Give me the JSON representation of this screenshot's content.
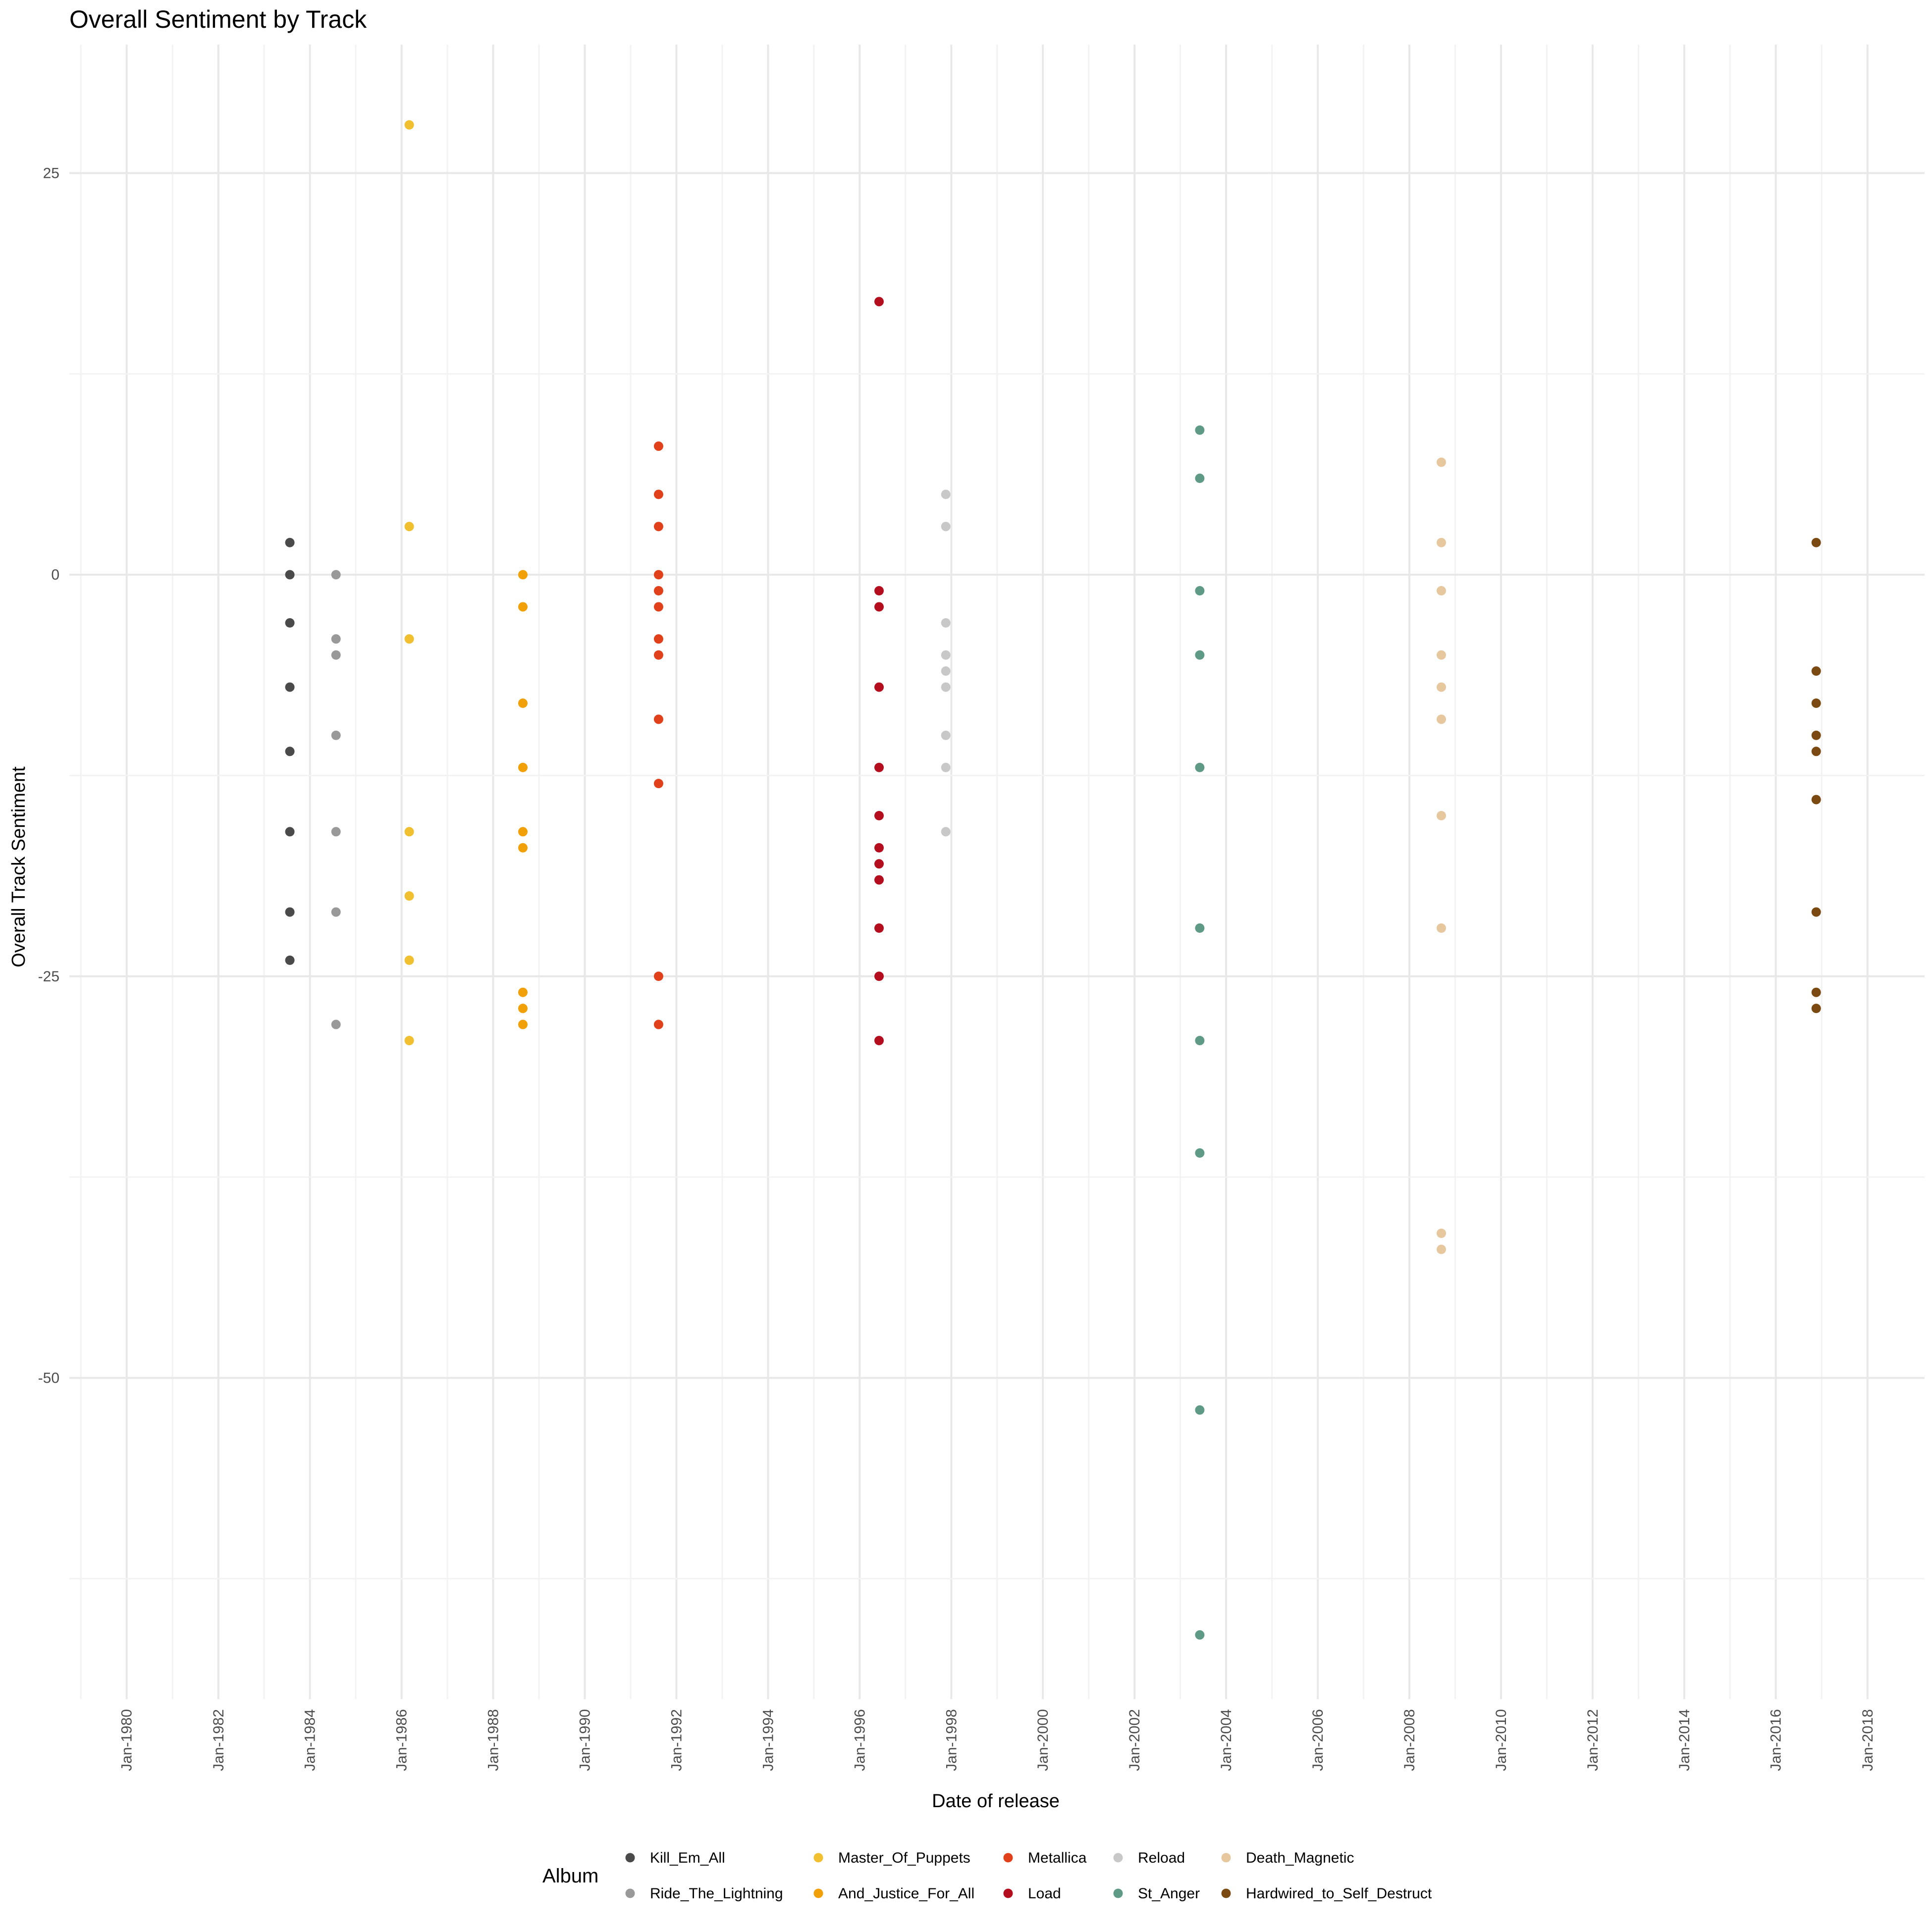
{
  "chart_data": {
    "type": "scatter",
    "title": "Overall Sentiment by Track",
    "xlabel": "Date of release",
    "ylabel": "Overall Track Sentiment",
    "x_scale": "date",
    "xlim": [
      "1978-10-01",
      "2019-04-01"
    ],
    "ylim": [
      -70,
      33
    ],
    "x_ticks": [
      "1980-01-01",
      "1982-01-01",
      "1984-01-01",
      "1986-01-01",
      "1988-01-01",
      "1990-01-01",
      "1992-01-01",
      "1994-01-01",
      "1996-01-01",
      "1998-01-01",
      "2000-01-01",
      "2002-01-01",
      "2004-01-01",
      "2006-01-01",
      "2008-01-01",
      "2010-01-01",
      "2012-01-01",
      "2014-01-01",
      "2016-01-01",
      "2018-01-01"
    ],
    "x_tick_labels": [
      "Jan-1980",
      "Jan-1982",
      "Jan-1984",
      "Jan-1986",
      "Jan-1988",
      "Jan-1990",
      "Jan-1992",
      "Jan-1994",
      "Jan-1996",
      "Jan-1998",
      "Jan-2000",
      "Jan-2002",
      "Jan-2004",
      "Jan-2006",
      "Jan-2008",
      "Jan-2010",
      "Jan-2012",
      "Jan-2014",
      "Jan-2016",
      "Jan-2018"
    ],
    "y_ticks": [
      25,
      0,
      -25,
      -50
    ],
    "y_tick_labels": [
      "25",
      "0",
      "-25",
      "-50"
    ],
    "grid": true,
    "legend_title": "Album",
    "legend_position": "bottom",
    "series": [
      {
        "name": "Kill_Em_All",
        "color": "#4a4a4a",
        "date": "1983-07-25",
        "values": [
          2,
          0,
          -3,
          -7,
          -11,
          -16,
          -21,
          -24
        ]
      },
      {
        "name": "Ride_The_Lightning",
        "color": "#999999",
        "date": "1984-07-27",
        "values": [
          0,
          -4,
          -5,
          -10,
          -16,
          -21,
          -28
        ]
      },
      {
        "name": "Master_Of_Puppets",
        "color": "#f0c030",
        "date": "1986-03-03",
        "values": [
          28,
          3,
          -4,
          -16,
          -20,
          -24,
          -29
        ]
      },
      {
        "name": "And_Justice_For_All",
        "color": "#f2a007",
        "date": "1988-08-25",
        "values": [
          0,
          -2,
          -8,
          -12,
          -16,
          -17,
          -26,
          -27,
          -28
        ]
      },
      {
        "name": "Metallica",
        "color": "#e0401a",
        "date": "1991-08-12",
        "values": [
          8,
          5,
          3,
          0,
          -1,
          -2,
          -4,
          -5,
          -9,
          -13,
          -25,
          -28
        ]
      },
      {
        "name": "Load",
        "color": "#b30d1e",
        "date": "1996-06-04",
        "values": [
          17,
          -1,
          -2,
          -7,
          -12,
          -15,
          -17,
          -18,
          -19,
          -22,
          -25,
          -29
        ]
      },
      {
        "name": "Reload",
        "color": "#c8c8c8",
        "date": "1997-11-18",
        "values": [
          5,
          3,
          -3,
          -5,
          -6,
          -7,
          -10,
          -12,
          -16
        ]
      },
      {
        "name": "St_Anger",
        "color": "#5f9a87",
        "date": "2003-06-05",
        "values": [
          9,
          6,
          -1,
          -5,
          -12,
          -22,
          -29,
          -36,
          -52,
          -66
        ]
      },
      {
        "name": "Death_Magnetic",
        "color": "#e6c79e",
        "date": "2008-09-12",
        "values": [
          7,
          2,
          -1,
          -5,
          -7,
          -9,
          -15,
          -22,
          -41,
          -42
        ]
      },
      {
        "name": "Hardwired_to_Self_Destruct",
        "color": "#7b4a13",
        "date": "2016-11-18",
        "values": [
          2,
          -6,
          -8,
          -10,
          -11,
          -14,
          -21,
          -26,
          -27
        ]
      }
    ]
  }
}
